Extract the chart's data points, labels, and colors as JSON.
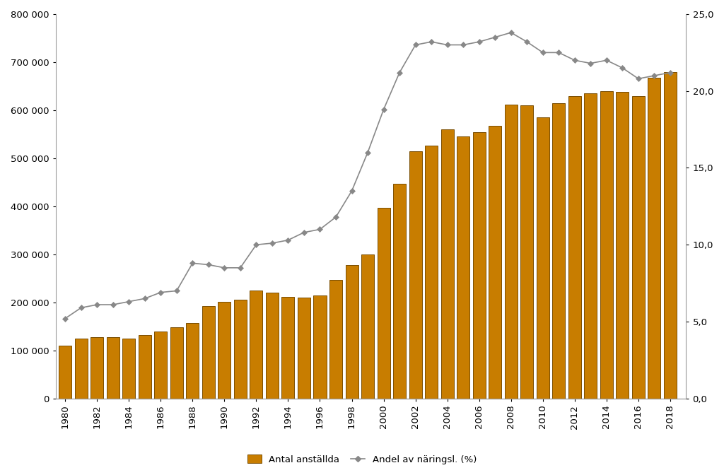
{
  "years": [
    1980,
    1981,
    1982,
    1983,
    1984,
    1985,
    1986,
    1987,
    1988,
    1989,
    1990,
    1991,
    1992,
    1993,
    1994,
    1995,
    1996,
    1997,
    1998,
    1999,
    2000,
    2001,
    2002,
    2003,
    2004,
    2005,
    2006,
    2007,
    2008,
    2009,
    2010,
    2011,
    2012,
    2013,
    2014,
    2015,
    2016,
    2017,
    2018
  ],
  "antal_anstallda": [
    110000,
    125000,
    128000,
    128000,
    125000,
    132000,
    140000,
    148000,
    157000,
    193000,
    201000,
    205000,
    225000,
    220000,
    212000,
    210000,
    215000,
    247000,
    278000,
    300000,
    397000,
    447000,
    515000,
    527000,
    560000,
    545000,
    555000,
    568000,
    612000,
    610000,
    585000,
    615000,
    630000,
    635000,
    640000,
    638000,
    630000,
    668000,
    680000
  ],
  "andel_naringsl": [
    5.2,
    5.9,
    6.1,
    6.1,
    6.3,
    6.5,
    6.9,
    7.0,
    8.8,
    8.7,
    8.5,
    8.5,
    10.0,
    10.1,
    10.3,
    10.8,
    11.0,
    11.8,
    13.5,
    16.0,
    18.8,
    21.2,
    23.0,
    23.2,
    23.0,
    23.0,
    23.2,
    23.5,
    23.8,
    23.2,
    22.5,
    22.5,
    22.0,
    21.8,
    22.0,
    21.5,
    20.8,
    21.0,
    21.2
  ],
  "bar_color": "#C87D00",
  "bar_edge_color": "#7A4D00",
  "line_color": "#888888",
  "marker_color": "#888888",
  "left_ylim": [
    0,
    800000
  ],
  "right_ylim": [
    0.0,
    25.0
  ],
  "left_yticks": [
    0,
    100000,
    200000,
    300000,
    400000,
    500000,
    600000,
    700000,
    800000
  ],
  "right_yticks": [
    0.0,
    5.0,
    10.0,
    15.0,
    20.0,
    25.0
  ],
  "xtick_years": [
    1980,
    1982,
    1984,
    1986,
    1988,
    1990,
    1992,
    1994,
    1996,
    1998,
    2000,
    2002,
    2004,
    2006,
    2008,
    2010,
    2012,
    2014,
    2016,
    2018
  ],
  "legend_label_bar": "Antal anställda",
  "legend_label_line": "Andel av näringsl. (%)",
  "background_color": "#ffffff"
}
